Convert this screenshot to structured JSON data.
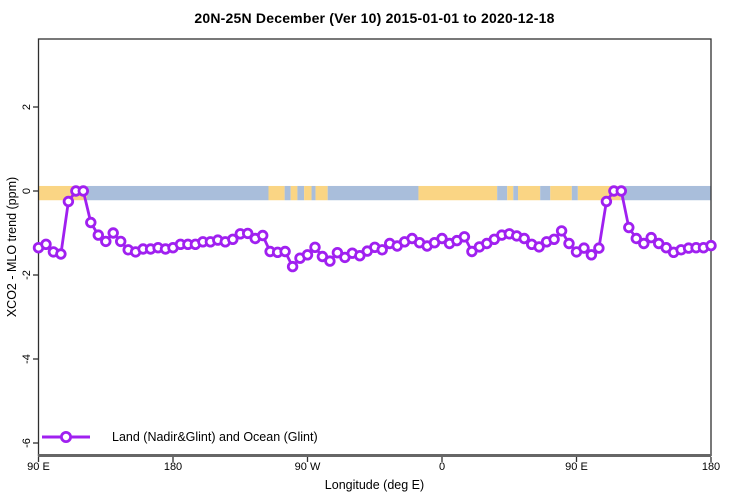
{
  "title": "20N-25N December (Ver 10)   2015-01-01 to 2020-12-18",
  "legend": {
    "series_label": "Land (Nadir&Glint) and Ocean (Glint)",
    "marker": "open-circle-on-line"
  },
  "axes": {
    "x": {
      "label": "Longitude (deg E)",
      "tick_labels": [
        "90 E",
        "180",
        "90 W",
        "0",
        "90 E",
        "180"
      ],
      "tick_lons_deg": [
        90,
        180,
        270,
        360,
        450,
        540
      ],
      "range_deg": [
        90,
        540
      ]
    },
    "y": {
      "label": "XCO2 - MLO trend (ppm)",
      "tick_labels": [
        "2",
        "0",
        "-2",
        "-4",
        "-6"
      ],
      "tick_values": [
        2,
        0,
        -2,
        -4,
        -6
      ],
      "range": [
        -6.3,
        3.6
      ]
    }
  },
  "colors": {
    "series": "#A020F0",
    "marker_fill": "#ffffff",
    "land": "#FAD584",
    "ocean": "#A9BEDB",
    "box": "#2f2f2f",
    "baseline": "#666666",
    "text": "#000000"
  },
  "chart_data": {
    "type": "line",
    "title": "20N-25N December (Ver 10)   2015-01-01 to 2020-12-18",
    "xlabel": "Longitude (deg E)",
    "ylabel": "XCO2 - MLO trend (ppm)",
    "xlim_deg_east_continuous": [
      90,
      540
    ],
    "ylim": [
      -6.3,
      3.6
    ],
    "grid": false,
    "legend_position": "bottom-left",
    "series": [
      {
        "name": "Land (Nadir&Glint) and Ocean (Glint)",
        "lon_start_deg": 90,
        "lon_step_deg": 5,
        "values": [
          -1.35,
          -1.27,
          -1.45,
          -1.5,
          -0.25,
          0.0,
          0.0,
          -0.75,
          -1.05,
          -1.2,
          -1.0,
          -1.2,
          -1.4,
          -1.45,
          -1.38,
          -1.38,
          -1.35,
          -1.38,
          -1.35,
          -1.27,
          -1.27,
          -1.27,
          -1.21,
          -1.21,
          -1.17,
          -1.21,
          -1.15,
          -1.02,
          -1.01,
          -1.13,
          -1.06,
          -1.44,
          -1.46,
          -1.44,
          -1.8,
          -1.6,
          -1.52,
          -1.34,
          -1.56,
          -1.67,
          -1.47,
          -1.58,
          -1.48,
          -1.54,
          -1.43,
          -1.34,
          -1.4,
          -1.25,
          -1.31,
          -1.21,
          -1.13,
          -1.23,
          -1.31,
          -1.23,
          -1.13,
          -1.25,
          -1.18,
          -1.09,
          -1.44,
          -1.33,
          -1.25,
          -1.15,
          -1.05,
          -1.02,
          -1.07,
          -1.13,
          -1.27,
          -1.33,
          -1.21,
          -1.15,
          -0.95,
          -1.25,
          -1.45,
          -1.36,
          -1.52,
          -1.36,
          -0.25,
          0.0,
          0.0,
          -0.87,
          -1.13,
          -1.25,
          -1.11,
          -1.25,
          -1.35,
          -1.46,
          -1.4,
          -1.36,
          -1.35,
          -1.35,
          -1.3
        ]
      }
    ],
    "map_band": {
      "description": "20N-25N latitude world-map strip drawn along the 0 ppm line",
      "y_range_ppm": [
        -0.22,
        0.12
      ],
      "segments": [
        [
          0.0,
          0.072,
          "land"
        ],
        [
          0.072,
          0.342,
          "ocean"
        ],
        [
          0.342,
          0.366,
          "land"
        ],
        [
          0.366,
          0.375,
          "ocean"
        ],
        [
          0.375,
          0.385,
          "land"
        ],
        [
          0.385,
          0.395,
          "ocean"
        ],
        [
          0.395,
          0.406,
          "land"
        ],
        [
          0.406,
          0.412,
          "ocean"
        ],
        [
          0.412,
          0.43,
          "land"
        ],
        [
          0.43,
          0.565,
          "ocean"
        ],
        [
          0.565,
          0.682,
          "land"
        ],
        [
          0.682,
          0.697,
          "ocean"
        ],
        [
          0.697,
          0.706,
          "land"
        ],
        [
          0.706,
          0.713,
          "ocean"
        ],
        [
          0.713,
          0.746,
          "land"
        ],
        [
          0.746,
          0.761,
          "ocean"
        ],
        [
          0.761,
          0.793,
          "land"
        ],
        [
          0.793,
          0.802,
          "ocean"
        ],
        [
          0.802,
          0.866,
          "land"
        ],
        [
          0.866,
          1.0,
          "ocean"
        ]
      ]
    }
  }
}
